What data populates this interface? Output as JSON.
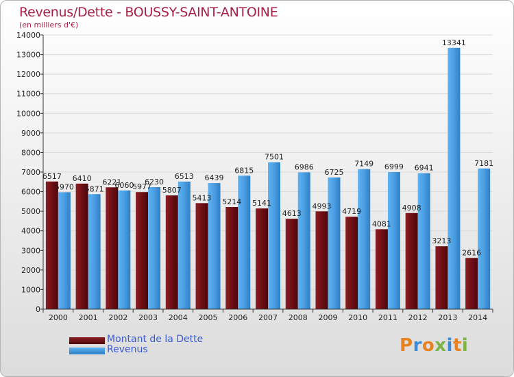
{
  "title": "Revenus/Dette - BOUSSY-SAINT-ANTOINE",
  "subtitle": "(en milliers d'€)",
  "logo": {
    "text": "Proxiti",
    "letter_colors": [
      "#e8821e",
      "#3c8ad8",
      "#e8821e",
      "#7cb342",
      "#3c8ad8",
      "#e8821e",
      "#7cb342"
    ]
  },
  "chart_data": {
    "type": "bar",
    "categories": [
      "2000",
      "2001",
      "2002",
      "2003",
      "2004",
      "2005",
      "2006",
      "2007",
      "2008",
      "2009",
      "2010",
      "2011",
      "2012",
      "2013",
      "2014"
    ],
    "ylim": [
      0,
      14000
    ],
    "yticks": [
      0,
      1000,
      2000,
      3000,
      4000,
      5000,
      6000,
      7000,
      8000,
      9000,
      10000,
      11000,
      12000,
      13000,
      14000
    ],
    "grid": true,
    "legend_position": "bottom-left",
    "series": [
      {
        "name": "Montant de la Dette",
        "color": "#6e0f14",
        "values": [
          6517,
          6410,
          6221,
          5977,
          5807,
          5413,
          5214,
          5141,
          4613,
          4993,
          4719,
          4081,
          4908,
          3213,
          2616
        ],
        "labels": [
          "6517",
          "6410",
          "6221",
          "5977",
          "5807",
          "5413",
          "5214",
          "5141",
          "4613",
          "4993",
          "4719",
          "4081",
          "4908",
          "3213",
          "2616"
        ]
      },
      {
        "name": "Revenus",
        "color": "#4a9ee3",
        "values": [
          5970,
          5871,
          6060,
          6230,
          6513,
          6439,
          6815,
          7501,
          6986,
          6725,
          7149,
          6999,
          6941,
          13341,
          7181
        ],
        "labels": [
          "5970",
          "5871",
          "6060",
          "6230",
          "6513",
          "6439",
          "6815",
          "7501",
          "6986",
          "6725",
          "7149",
          "6999",
          "6941",
          "13341",
          "7181"
        ]
      }
    ]
  }
}
